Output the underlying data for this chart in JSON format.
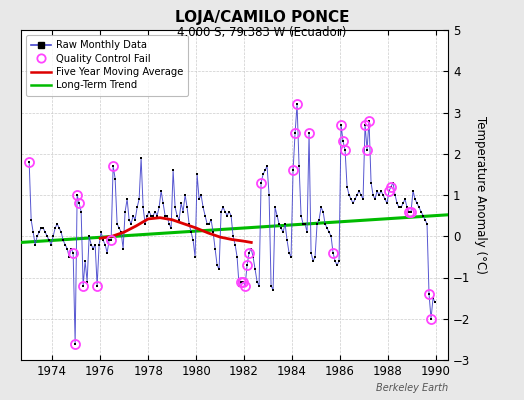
{
  "title": "LOJA/CAMILO PONCE",
  "subtitle": "4.000 S, 79.383 W (Ecuador)",
  "ylabel": "Temperature Anomaly (°C)",
  "watermark": "Berkeley Earth",
  "xlim": [
    1972.7,
    1990.5
  ],
  "ylim": [
    -3,
    5
  ],
  "yticks": [
    -3,
    -2,
    -1,
    0,
    1,
    2,
    3,
    4,
    5
  ],
  "xticks": [
    1974,
    1976,
    1978,
    1980,
    1982,
    1984,
    1986,
    1988,
    1990
  ],
  "fig_bg_color": "#e8e8e8",
  "plot_bg_color": "#ffffff",
  "raw_x": [
    1973.042,
    1973.125,
    1973.208,
    1973.292,
    1973.375,
    1973.458,
    1973.542,
    1973.625,
    1973.708,
    1973.792,
    1973.875,
    1973.958,
    1974.042,
    1974.125,
    1974.208,
    1974.292,
    1974.375,
    1974.458,
    1974.542,
    1974.625,
    1974.708,
    1974.792,
    1974.875,
    1974.958,
    1975.042,
    1975.125,
    1975.208,
    1975.292,
    1975.375,
    1975.458,
    1975.542,
    1975.625,
    1975.708,
    1975.792,
    1975.875,
    1975.958,
    1976.042,
    1976.125,
    1976.208,
    1976.292,
    1976.375,
    1976.458,
    1976.542,
    1976.625,
    1976.708,
    1976.792,
    1976.875,
    1976.958,
    1977.042,
    1977.125,
    1977.208,
    1977.292,
    1977.375,
    1977.458,
    1977.542,
    1977.625,
    1977.708,
    1977.792,
    1977.875,
    1977.958,
    1978.042,
    1978.125,
    1978.208,
    1978.292,
    1978.375,
    1978.458,
    1978.542,
    1978.625,
    1978.708,
    1978.792,
    1978.875,
    1978.958,
    1979.042,
    1979.125,
    1979.208,
    1979.292,
    1979.375,
    1979.458,
    1979.542,
    1979.625,
    1979.708,
    1979.792,
    1979.875,
    1979.958,
    1980.042,
    1980.125,
    1980.208,
    1980.292,
    1980.375,
    1980.458,
    1980.542,
    1980.625,
    1980.708,
    1980.792,
    1980.875,
    1980.958,
    1981.042,
    1981.125,
    1981.208,
    1981.292,
    1981.375,
    1981.458,
    1981.542,
    1981.625,
    1981.708,
    1981.792,
    1981.875,
    1981.958,
    1982.042,
    1982.125,
    1982.208,
    1982.292,
    1982.375,
    1982.458,
    1982.542,
    1982.625,
    1982.708,
    1982.792,
    1982.875,
    1982.958,
    1983.042,
    1983.125,
    1983.208,
    1983.292,
    1983.375,
    1983.458,
    1983.542,
    1983.625,
    1983.708,
    1983.792,
    1983.875,
    1983.958,
    1984.042,
    1984.125,
    1984.208,
    1984.292,
    1984.375,
    1984.458,
    1984.542,
    1984.625,
    1984.708,
    1984.792,
    1984.875,
    1984.958,
    1985.042,
    1985.125,
    1985.208,
    1985.292,
    1985.375,
    1985.458,
    1985.542,
    1985.625,
    1985.708,
    1985.792,
    1985.875,
    1985.958,
    1986.042,
    1986.125,
    1986.208,
    1986.292,
    1986.375,
    1986.458,
    1986.542,
    1986.625,
    1986.708,
    1986.792,
    1986.875,
    1986.958,
    1987.042,
    1987.125,
    1987.208,
    1987.292,
    1987.375,
    1987.458,
    1987.542,
    1987.625,
    1987.708,
    1987.792,
    1987.875,
    1987.958,
    1988.042,
    1988.125,
    1988.208,
    1988.292,
    1988.375,
    1988.458,
    1988.542,
    1988.625,
    1988.708,
    1988.792,
    1988.875,
    1988.958,
    1989.042,
    1989.125,
    1989.208,
    1989.292,
    1989.375,
    1989.458,
    1989.542,
    1989.625,
    1989.708,
    1989.792,
    1989.875,
    1989.958
  ],
  "raw_y": [
    1.8,
    0.4,
    0.1,
    -0.2,
    0.0,
    0.1,
    0.2,
    0.2,
    0.1,
    0.0,
    -0.1,
    -0.2,
    0.0,
    0.2,
    0.3,
    0.2,
    0.1,
    -0.1,
    -0.2,
    -0.3,
    -0.5,
    -0.3,
    -0.4,
    -2.6,
    1.0,
    0.8,
    0.6,
    -1.2,
    -0.6,
    -1.1,
    0.0,
    -0.2,
    -0.3,
    -0.2,
    -1.2,
    -0.2,
    0.1,
    -0.1,
    -0.2,
    -0.4,
    -0.1,
    -0.1,
    1.7,
    1.4,
    0.3,
    0.2,
    0.1,
    -0.3,
    0.6,
    0.9,
    0.4,
    0.3,
    0.5,
    0.4,
    0.7,
    0.9,
    1.9,
    0.7,
    0.3,
    0.5,
    0.6,
    0.5,
    0.5,
    0.6,
    0.5,
    0.7,
    1.1,
    0.8,
    0.5,
    0.5,
    0.3,
    0.2,
    1.6,
    0.7,
    0.5,
    0.4,
    0.8,
    0.6,
    1.0,
    0.7,
    0.3,
    0.1,
    -0.1,
    -0.5,
    1.5,
    0.9,
    1.0,
    0.7,
    0.5,
    0.3,
    0.3,
    0.4,
    0.1,
    -0.3,
    -0.7,
    -0.8,
    0.6,
    0.7,
    0.6,
    0.5,
    0.6,
    0.5,
    0.0,
    -0.2,
    -0.5,
    -1.2,
    -1.1,
    -1.1,
    -1.2,
    -0.7,
    -0.4,
    -0.3,
    -0.5,
    -0.8,
    -1.1,
    -1.2,
    1.3,
    1.5,
    1.6,
    1.7,
    1.0,
    -1.2,
    -1.3,
    0.7,
    0.5,
    0.3,
    0.2,
    0.1,
    0.3,
    -0.1,
    -0.4,
    -0.5,
    1.6,
    2.5,
    3.2,
    1.7,
    0.5,
    0.3,
    0.3,
    0.1,
    2.5,
    -0.4,
    -0.6,
    -0.5,
    0.3,
    0.4,
    0.7,
    0.6,
    0.3,
    0.2,
    0.1,
    0.0,
    -0.4,
    -0.6,
    -0.7,
    -0.6,
    2.7,
    2.3,
    2.1,
    1.2,
    1.0,
    0.9,
    0.8,
    0.9,
    1.0,
    1.1,
    1.0,
    0.9,
    2.7,
    2.1,
    2.8,
    1.3,
    1.0,
    0.9,
    1.1,
    1.0,
    1.1,
    1.0,
    0.9,
    0.8,
    1.1,
    1.2,
    1.3,
    1.0,
    0.8,
    0.7,
    0.7,
    0.8,
    0.9,
    0.7,
    0.6,
    0.6,
    1.1,
    0.9,
    0.8,
    0.7,
    0.6,
    0.5,
    0.4,
    0.3,
    -1.4,
    -2.0,
    -1.5,
    -1.6
  ],
  "qc_x": [
    1973.042,
    1974.875,
    1974.958,
    1975.042,
    1975.125,
    1975.292,
    1975.875,
    1976.458,
    1976.542,
    1981.875,
    1981.958,
    1982.042,
    1982.125,
    1982.208,
    1982.708,
    1984.042,
    1984.125,
    1984.208,
    1984.708,
    1985.708,
    1986.042,
    1986.125,
    1986.208,
    1987.042,
    1987.125,
    1987.208,
    1988.042,
    1988.125,
    1988.875,
    1988.958,
    1989.708,
    1989.792
  ],
  "qc_y": [
    1.8,
    -0.4,
    -2.6,
    1.0,
    0.8,
    -1.2,
    -1.2,
    -0.1,
    1.7,
    -1.1,
    -1.1,
    -1.2,
    -0.7,
    -0.4,
    1.3,
    1.6,
    2.5,
    3.2,
    2.5,
    -0.4,
    2.7,
    2.3,
    2.1,
    2.7,
    2.1,
    2.8,
    1.1,
    1.2,
    0.6,
    0.6,
    -1.4,
    -2.0
  ],
  "ma_x": [
    1976.0,
    1976.5,
    1977.0,
    1977.5,
    1978.0,
    1978.5,
    1979.0,
    1979.5,
    1980.0,
    1980.5,
    1981.0,
    1981.5,
    1982.0,
    1982.3
  ],
  "ma_y": [
    -0.05,
    0.0,
    0.1,
    0.25,
    0.42,
    0.45,
    0.4,
    0.3,
    0.2,
    0.08,
    -0.02,
    -0.08,
    -0.12,
    -0.15
  ],
  "trend_x": [
    1972.7,
    1990.5
  ],
  "trend_y": [
    -0.15,
    0.52
  ],
  "line_color": "#4444cc",
  "dot_color": "#000000",
  "qc_color": "#ff44ff",
  "ma_color": "#dd0000",
  "trend_color": "#00bb00"
}
